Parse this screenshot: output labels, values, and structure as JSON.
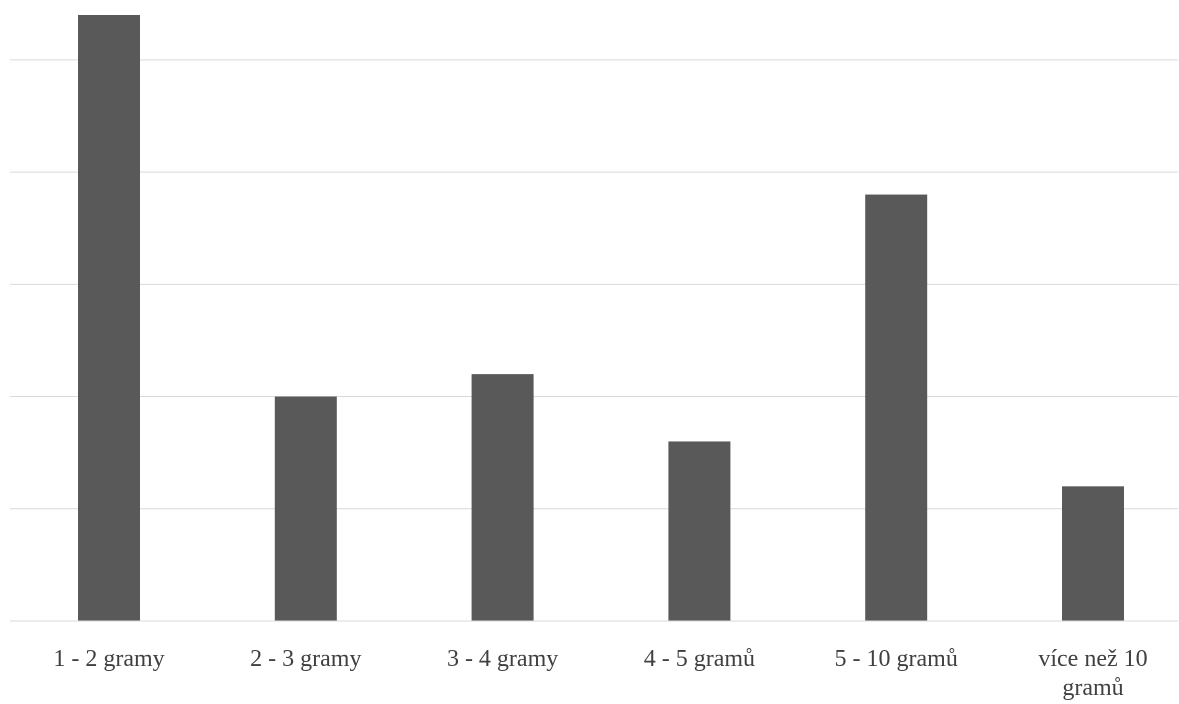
{
  "chart_data": {
    "type": "bar",
    "categories": [
      "1 - 2 gramy",
      "2 - 3 gramy",
      "3 - 4 gramy",
      "4 - 5 gramů",
      "5 - 10 gramů",
      "více než 10 gramů"
    ],
    "category_lines": [
      [
        "1 - 2 gramy"
      ],
      [
        "2 - 3 gramy"
      ],
      [
        "3 - 4 gramy"
      ],
      [
        "4 - 5 gramů"
      ],
      [
        "5 - 10 gramů"
      ],
      [
        "více než 10",
        "gramů"
      ]
    ],
    "values": [
      5.4,
      2.0,
      2.2,
      1.6,
      3.8,
      1.2
    ],
    "ylim": [
      0,
      5.4
    ],
    "y_gridlines": [
      0,
      1,
      2,
      3,
      4,
      5
    ],
    "grid": true,
    "y_tick_labels_shown": false,
    "title": "",
    "xlabel": "",
    "ylabel": "",
    "bar_color": "#595959",
    "grid_color": "#d9d9d9",
    "axis_color": "#d9d9d9",
    "label_color": "#404040"
  }
}
